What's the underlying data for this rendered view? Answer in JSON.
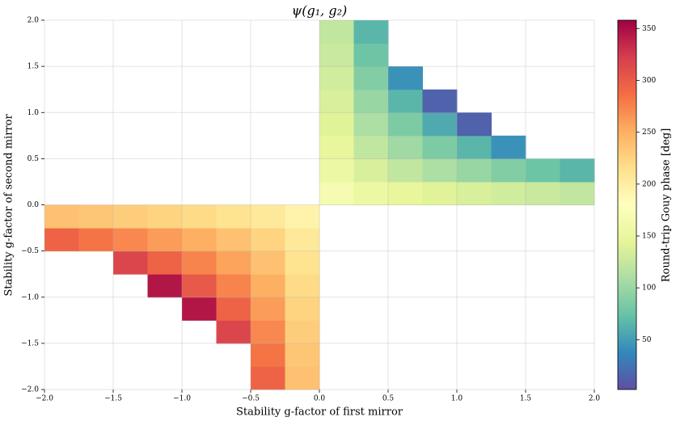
{
  "chart_data": {
    "type": "heatmap",
    "title": "ψ(g₁, g₂)",
    "xlabel": "Stability g-factor of first mirror",
    "ylabel": "Stability g-factor of second mirror",
    "colorbar_label": "Round-trip Gouy phase [deg]",
    "x": [
      -1.875,
      -1.625,
      -1.375,
      -1.125,
      -0.875,
      -0.625,
      -0.375,
      -0.125,
      0.125,
      0.375,
      0.625,
      0.875,
      1.125,
      1.375,
      1.625,
      1.875
    ],
    "y": [
      -1.875,
      -1.625,
      -1.375,
      -1.125,
      -0.875,
      -0.625,
      -0.375,
      -0.125,
      0.125,
      0.375,
      0.625,
      0.875,
      1.125,
      1.375,
      1.625,
      1.875
    ],
    "z": [
      [
        null,
        null,
        null,
        null,
        null,
        null,
        294,
        238,
        null,
        null,
        null,
        null,
        null,
        null,
        null,
        null
      ],
      [
        null,
        null,
        null,
        null,
        null,
        null,
        283,
        234,
        null,
        null,
        null,
        null,
        null,
        null,
        null,
        null
      ],
      [
        null,
        null,
        null,
        null,
        null,
        316,
        272,
        229,
        null,
        null,
        null,
        null,
        null,
        null,
        null,
        null
      ],
      [
        null,
        null,
        null,
        null,
        346,
        294,
        261,
        224,
        null,
        null,
        null,
        null,
        null,
        null,
        null,
        null
      ],
      [
        null,
        null,
        null,
        346,
        302,
        275,
        250,
        219,
        null,
        null,
        null,
        null,
        null,
        null,
        null,
        null
      ],
      [
        null,
        null,
        316,
        294,
        275,
        257,
        238,
        212,
        null,
        null,
        null,
        null,
        null,
        null,
        null,
        null
      ],
      [
        294,
        283,
        272,
        261,
        250,
        238,
        224,
        205,
        null,
        null,
        null,
        null,
        null,
        null,
        null,
        null
      ],
      [
        238,
        234,
        229,
        224,
        219,
        212,
        205,
        194,
        null,
        null,
        null,
        null,
        null,
        null,
        null,
        null
      ],
      [
        null,
        null,
        null,
        null,
        null,
        null,
        null,
        null,
        166,
        155,
        148,
        141,
        136,
        131,
        126,
        122
      ],
      [
        null,
        null,
        null,
        null,
        null,
        null,
        null,
        null,
        155,
        136,
        122,
        110,
        99,
        88,
        77,
        66
      ],
      [
        null,
        null,
        null,
        null,
        null,
        null,
        null,
        null,
        148,
        122,
        103,
        85,
        66,
        44,
        null,
        null
      ],
      [
        null,
        null,
        null,
        null,
        null,
        null,
        null,
        null,
        141,
        110,
        85,
        58,
        14,
        null,
        null,
        null
      ],
      [
        null,
        null,
        null,
        null,
        null,
        null,
        null,
        null,
        136,
        99,
        66,
        14,
        null,
        null,
        null,
        null
      ],
      [
        null,
        null,
        null,
        null,
        null,
        null,
        null,
        null,
        131,
        88,
        44,
        null,
        null,
        null,
        null,
        null
      ],
      [
        null,
        null,
        null,
        null,
        null,
        null,
        null,
        null,
        126,
        77,
        null,
        null,
        null,
        null,
        null,
        null
      ],
      [
        null,
        null,
        null,
        null,
        null,
        null,
        null,
        null,
        122,
        66,
        null,
        null,
        null,
        null,
        null,
        null
      ]
    ],
    "xlim": [
      -2,
      2
    ],
    "ylim": [
      -2,
      2
    ],
    "xticks": [
      {
        "value": -2,
        "label": "−2.0"
      },
      {
        "value": -1.5,
        "label": "−1.5"
      },
      {
        "value": -1,
        "label": "−1.0"
      },
      {
        "value": -0.5,
        "label": "−0.5"
      },
      {
        "value": 0,
        "label": "0.0"
      },
      0.5,
      {
        "value": 1,
        "label": "1.0"
      },
      1.5,
      {
        "value": 2,
        "label": "2.0"
      }
    ],
    "yticks": [
      {
        "value": -2,
        "label": "−2.0"
      },
      {
        "value": -1.5,
        "label": "−1.5"
      },
      {
        "value": -1,
        "label": "−1.0"
      },
      {
        "value": -0.5,
        "label": "−0.5"
      },
      {
        "value": 0,
        "label": "0.0"
      },
      0.5,
      {
        "value": 1,
        "label": "1.0"
      },
      1.5,
      {
        "value": 2,
        "label": "2.0"
      }
    ],
    "zlim": [
      2,
      358
    ],
    "colorbar_ticks": [
      50,
      100,
      150,
      200,
      250,
      300,
      350
    ],
    "colorscale": [
      "#5e4fa2",
      "#3288bd",
      "#66c2a5",
      "#abdda4",
      "#e6f598",
      "#ffffbf",
      "#fee08b",
      "#fdae61",
      "#f46d43",
      "#d53e4f",
      "#9e0142"
    ],
    "grid": true
  }
}
